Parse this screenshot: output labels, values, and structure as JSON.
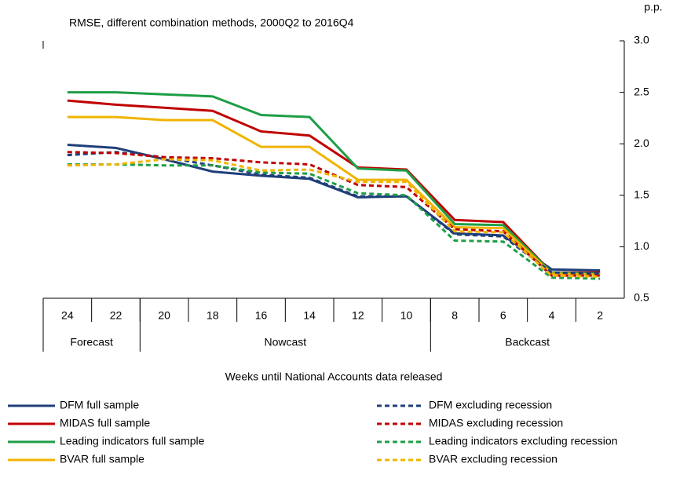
{
  "chart_data": {
    "type": "line",
    "subtitle": "RMSE, different combination methods, 2000Q2 to 2016Q4",
    "y_unit": "p.p.",
    "x_label": "Weeks until National Accounts data released",
    "categories": [
      "24",
      "22",
      "20",
      "18",
      "16",
      "14",
      "12",
      "10",
      "8",
      "6",
      "4",
      "2"
    ],
    "groups": [
      {
        "name": "Forecast",
        "span": 2
      },
      {
        "name": "Nowcast",
        "span": 6
      },
      {
        "name": "Backcast",
        "span": 4
      }
    ],
    "ylim": [
      0.5,
      3.0
    ],
    "yticks": [
      0.5,
      {
        "value": 1.0,
        "label": "1.0"
      },
      1.5,
      {
        "value": 2.0,
        "label": "2.0"
      },
      2.5,
      {
        "value": 3.0,
        "label": "3.0"
      }
    ],
    "y_axis_side": "right",
    "series": [
      {
        "name": "DFM full sample",
        "color": "#1f3f7a",
        "dashed": false,
        "values": [
          1.99,
          1.96,
          1.85,
          1.73,
          1.69,
          1.66,
          1.48,
          1.49,
          1.13,
          1.11,
          0.78,
          0.77
        ]
      },
      {
        "name": "MIDAS full sample",
        "color": "#c00000",
        "dashed": false,
        "values": [
          2.42,
          2.38,
          2.35,
          2.32,
          2.12,
          2.08,
          1.77,
          1.75,
          1.26,
          1.24,
          0.75,
          0.75
        ]
      },
      {
        "name": "Leading indicators full sample",
        "color": "#1e9e46",
        "dashed": false,
        "values": [
          2.5,
          2.5,
          2.48,
          2.46,
          2.28,
          2.26,
          1.76,
          1.74,
          1.22,
          1.21,
          0.75,
          0.74
        ]
      },
      {
        "name": "BVAR full sample",
        "color": "#f0b400",
        "dashed": false,
        "values": [
          2.26,
          2.26,
          2.23,
          2.23,
          1.97,
          1.97,
          1.65,
          1.65,
          1.19,
          1.18,
          0.74,
          0.73
        ]
      },
      {
        "name": "DFM excluding recession",
        "color": "#1f3f7a",
        "dashed": true,
        "values": [
          1.89,
          1.92,
          1.87,
          1.79,
          1.7,
          1.67,
          1.49,
          1.49,
          1.12,
          1.1,
          0.75,
          0.74
        ]
      },
      {
        "name": "MIDAS excluding recession",
        "color": "#c00000",
        "dashed": true,
        "values": [
          1.92,
          1.91,
          1.87,
          1.86,
          1.82,
          1.8,
          1.6,
          1.58,
          1.17,
          1.15,
          0.72,
          0.72
        ]
      },
      {
        "name": "Leading indicators excluding recession",
        "color": "#1e9e46",
        "dashed": true,
        "values": [
          1.8,
          1.8,
          1.79,
          1.79,
          1.72,
          1.71,
          1.52,
          1.5,
          1.06,
          1.05,
          0.7,
          0.69
        ]
      },
      {
        "name": "BVAR excluding recession",
        "color": "#f0b400",
        "dashed": true,
        "values": [
          1.79,
          1.8,
          1.85,
          1.84,
          1.74,
          1.75,
          1.63,
          1.63,
          1.15,
          1.14,
          0.72,
          0.71
        ]
      }
    ]
  }
}
